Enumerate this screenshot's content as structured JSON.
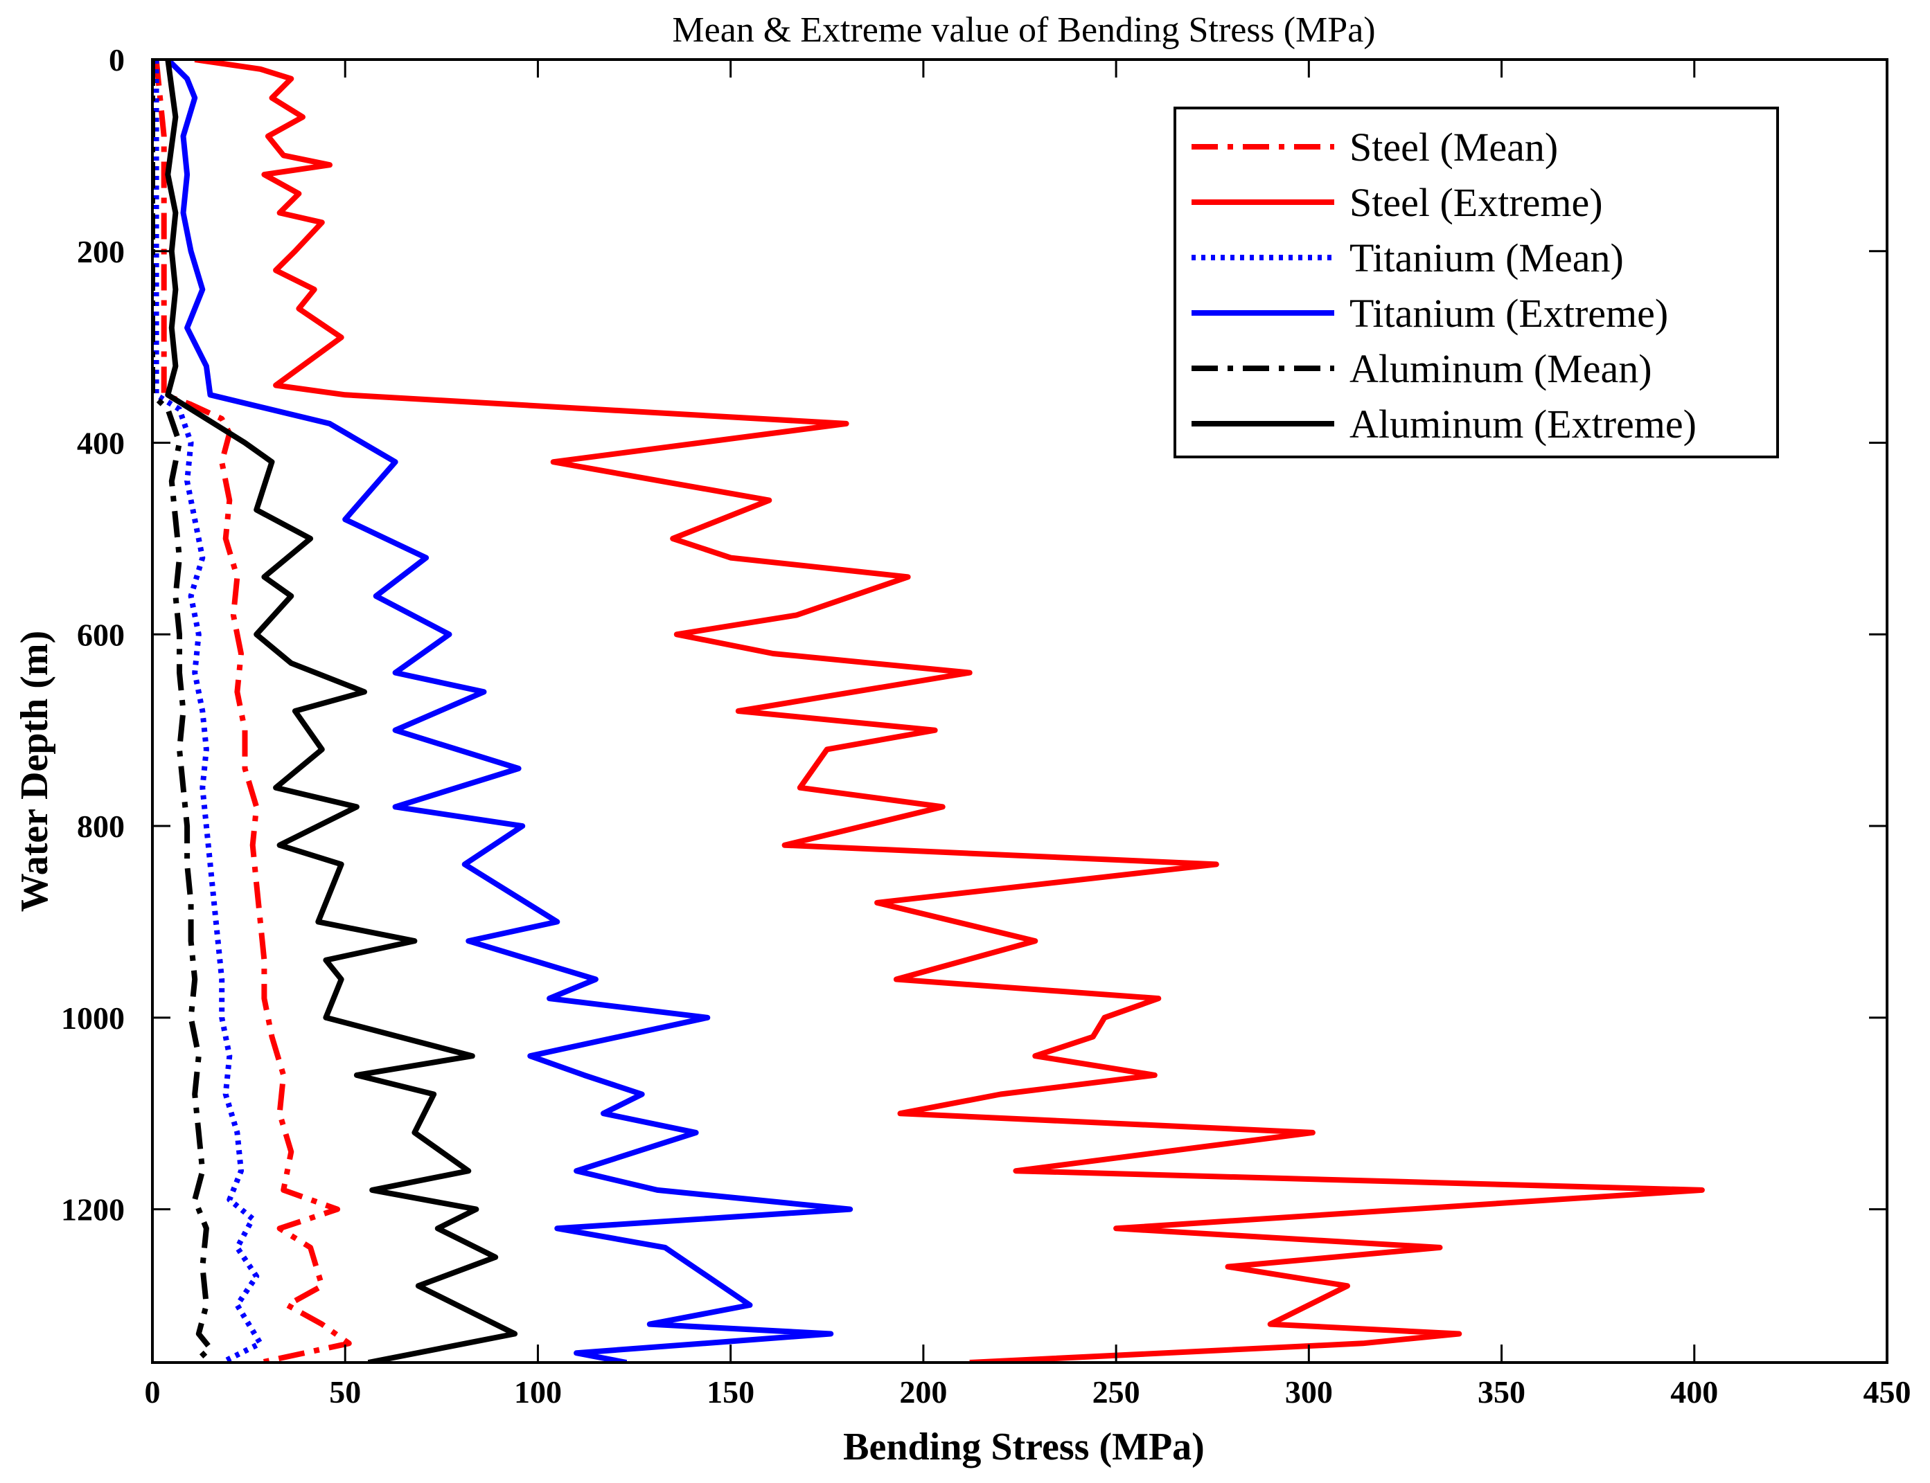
{
  "chart_data": {
    "type": "line",
    "title": "Mean & Extreme value of Bending Stress (MPa)",
    "xlabel": "Bending Stress (MPa)",
    "ylabel": "Water Depth (m)",
    "xlim": [
      0,
      450
    ],
    "ylim": [
      0,
      1360
    ],
    "y_reversed": true,
    "xticks": [
      "0",
      "50",
      "100",
      "150",
      "200",
      "250",
      "300",
      "350",
      "400",
      "450"
    ],
    "yticks": [
      "0",
      "200",
      "400",
      "600",
      "800",
      "1000",
      "1200"
    ],
    "grid": false,
    "legend_position": "top-right",
    "series": [
      {
        "name": "Steel (Mean)",
        "color": "#ff0000",
        "style": "dashdot",
        "points": [
          [
            1,
            0
          ],
          [
            2,
            40
          ],
          [
            3,
            80
          ],
          [
            3,
            120
          ],
          [
            3,
            160
          ],
          [
            3,
            200
          ],
          [
            3,
            240
          ],
          [
            3,
            280
          ],
          [
            3,
            320
          ],
          [
            3,
            350
          ],
          [
            10,
            360
          ],
          [
            18,
            375
          ],
          [
            20,
            390
          ],
          [
            18,
            420
          ],
          [
            20,
            460
          ],
          [
            19,
            500
          ],
          [
            22,
            540
          ],
          [
            21,
            580
          ],
          [
            23,
            620
          ],
          [
            22,
            660
          ],
          [
            24,
            700
          ],
          [
            24,
            740
          ],
          [
            27,
            780
          ],
          [
            26,
            820
          ],
          [
            27,
            860
          ],
          [
            28,
            900
          ],
          [
            29,
            940
          ],
          [
            29,
            980
          ],
          [
            31,
            1020
          ],
          [
            34,
            1060
          ],
          [
            33,
            1100
          ],
          [
            36,
            1140
          ],
          [
            34,
            1180
          ],
          [
            48,
            1200
          ],
          [
            33,
            1220
          ],
          [
            41,
            1240
          ],
          [
            44,
            1280
          ],
          [
            35,
            1300
          ],
          [
            44,
            1320
          ],
          [
            51,
            1340
          ],
          [
            28,
            1360
          ]
        ]
      },
      {
        "name": "Steel (Extreme)",
        "color": "#ff0000",
        "style": "solid",
        "points": [
          [
            11,
            0
          ],
          [
            28,
            10
          ],
          [
            36,
            20
          ],
          [
            31,
            40
          ],
          [
            39,
            60
          ],
          [
            30,
            80
          ],
          [
            34,
            100
          ],
          [
            46,
            110
          ],
          [
            29,
            120
          ],
          [
            38,
            140
          ],
          [
            33,
            160
          ],
          [
            44,
            170
          ],
          [
            37,
            200
          ],
          [
            32,
            220
          ],
          [
            42,
            240
          ],
          [
            38,
            260
          ],
          [
            49,
            290
          ],
          [
            32,
            340
          ],
          [
            50,
            350
          ],
          [
            180,
            380
          ],
          [
            104,
            420
          ],
          [
            160,
            460
          ],
          [
            135,
            500
          ],
          [
            150,
            520
          ],
          [
            196,
            540
          ],
          [
            167,
            580
          ],
          [
            136,
            600
          ],
          [
            161,
            620
          ],
          [
            212,
            640
          ],
          [
            152,
            680
          ],
          [
            203,
            700
          ],
          [
            175,
            720
          ],
          [
            168,
            760
          ],
          [
            205,
            780
          ],
          [
            164,
            820
          ],
          [
            276,
            840
          ],
          [
            188,
            880
          ],
          [
            229,
            920
          ],
          [
            193,
            960
          ],
          [
            261,
            980
          ],
          [
            247,
            1000
          ],
          [
            244,
            1020
          ],
          [
            229,
            1040
          ],
          [
            260,
            1060
          ],
          [
            220,
            1080
          ],
          [
            194,
            1100
          ],
          [
            301,
            1120
          ],
          [
            224,
            1160
          ],
          [
            402,
            1180
          ],
          [
            250,
            1220
          ],
          [
            334,
            1240
          ],
          [
            279,
            1260
          ],
          [
            310,
            1280
          ],
          [
            290,
            1320
          ],
          [
            339,
            1330
          ],
          [
            314,
            1340
          ],
          [
            212,
            1360
          ]
        ]
      },
      {
        "name": "Titanium (Mean)",
        "color": "#0000ff",
        "style": "dotted",
        "points": [
          [
            1,
            0
          ],
          [
            1,
            40
          ],
          [
            1,
            80
          ],
          [
            1,
            120
          ],
          [
            1,
            160
          ],
          [
            1,
            200
          ],
          [
            1,
            240
          ],
          [
            1,
            280
          ],
          [
            1,
            320
          ],
          [
            1,
            350
          ],
          [
            7,
            365
          ],
          [
            10,
            400
          ],
          [
            9,
            440
          ],
          [
            11,
            480
          ],
          [
            13,
            520
          ],
          [
            10,
            560
          ],
          [
            12,
            600
          ],
          [
            11,
            640
          ],
          [
            13,
            680
          ],
          [
            14,
            720
          ],
          [
            13,
            760
          ],
          [
            14,
            800
          ],
          [
            15,
            840
          ],
          [
            16,
            880
          ],
          [
            17,
            920
          ],
          [
            18,
            960
          ],
          [
            18,
            1000
          ],
          [
            20,
            1040
          ],
          [
            19,
            1080
          ],
          [
            22,
            1120
          ],
          [
            23,
            1160
          ],
          [
            20,
            1190
          ],
          [
            26,
            1210
          ],
          [
            22,
            1240
          ],
          [
            27,
            1270
          ],
          [
            22,
            1300
          ],
          [
            28,
            1340
          ],
          [
            18,
            1360
          ]
        ]
      },
      {
        "name": "Titanium (Extreme)",
        "color": "#0000ff",
        "style": "solid",
        "points": [
          [
            4,
            0
          ],
          [
            9,
            20
          ],
          [
            11,
            40
          ],
          [
            8,
            80
          ],
          [
            9,
            120
          ],
          [
            8,
            160
          ],
          [
            10,
            200
          ],
          [
            13,
            240
          ],
          [
            9,
            280
          ],
          [
            14,
            320
          ],
          [
            15,
            350
          ],
          [
            46,
            380
          ],
          [
            63,
            420
          ],
          [
            50,
            480
          ],
          [
            71,
            520
          ],
          [
            58,
            560
          ],
          [
            77,
            600
          ],
          [
            63,
            640
          ],
          [
            86,
            660
          ],
          [
            63,
            700
          ],
          [
            95,
            740
          ],
          [
            63,
            780
          ],
          [
            96,
            800
          ],
          [
            81,
            840
          ],
          [
            105,
            900
          ],
          [
            82,
            920
          ],
          [
            115,
            960
          ],
          [
            103,
            980
          ],
          [
            144,
            1000
          ],
          [
            98,
            1040
          ],
          [
            112,
            1060
          ],
          [
            127,
            1080
          ],
          [
            117,
            1100
          ],
          [
            141,
            1120
          ],
          [
            110,
            1160
          ],
          [
            131,
            1180
          ],
          [
            181,
            1200
          ],
          [
            105,
            1220
          ],
          [
            133,
            1240
          ],
          [
            155,
            1300
          ],
          [
            129,
            1320
          ],
          [
            176,
            1330
          ],
          [
            110,
            1350
          ],
          [
            123,
            1360
          ]
        ]
      },
      {
        "name": "Aluminum (Mean)",
        "color": "#000000",
        "style": "dashdot",
        "points": [
          [
            0,
            0
          ],
          [
            0,
            40
          ],
          [
            0,
            80
          ],
          [
            0,
            120
          ],
          [
            0,
            160
          ],
          [
            0,
            200
          ],
          [
            0,
            240
          ],
          [
            0,
            280
          ],
          [
            0,
            320
          ],
          [
            0,
            350
          ],
          [
            4,
            365
          ],
          [
            7,
            400
          ],
          [
            5,
            440
          ],
          [
            6,
            480
          ],
          [
            7,
            520
          ],
          [
            6,
            560
          ],
          [
            7,
            600
          ],
          [
            7,
            640
          ],
          [
            8,
            680
          ],
          [
            7,
            720
          ],
          [
            8,
            760
          ],
          [
            9,
            800
          ],
          [
            9,
            840
          ],
          [
            10,
            880
          ],
          [
            10,
            920
          ],
          [
            11,
            960
          ],
          [
            10,
            1000
          ],
          [
            12,
            1040
          ],
          [
            11,
            1080
          ],
          [
            12,
            1120
          ],
          [
            13,
            1160
          ],
          [
            11,
            1190
          ],
          [
            14,
            1220
          ],
          [
            13,
            1260
          ],
          [
            14,
            1300
          ],
          [
            12,
            1330
          ],
          [
            15,
            1345
          ],
          [
            11,
            1360
          ]
        ]
      },
      {
        "name": "Aluminum (Extreme)",
        "color": "#000000",
        "style": "solid",
        "points": [
          [
            4,
            0
          ],
          [
            5,
            30
          ],
          [
            6,
            60
          ],
          [
            5,
            90
          ],
          [
            4,
            120
          ],
          [
            6,
            160
          ],
          [
            5,
            200
          ],
          [
            6,
            240
          ],
          [
            5,
            280
          ],
          [
            6,
            320
          ],
          [
            4,
            350
          ],
          [
            24,
            400
          ],
          [
            31,
            420
          ],
          [
            27,
            470
          ],
          [
            41,
            500
          ],
          [
            29,
            540
          ],
          [
            36,
            560
          ],
          [
            27,
            600
          ],
          [
            36,
            630
          ],
          [
            55,
            660
          ],
          [
            37,
            680
          ],
          [
            44,
            720
          ],
          [
            32,
            760
          ],
          [
            53,
            780
          ],
          [
            33,
            820
          ],
          [
            49,
            840
          ],
          [
            43,
            900
          ],
          [
            68,
            920
          ],
          [
            45,
            940
          ],
          [
            49,
            960
          ],
          [
            45,
            1000
          ],
          [
            83,
            1040
          ],
          [
            53,
            1060
          ],
          [
            73,
            1080
          ],
          [
            68,
            1120
          ],
          [
            82,
            1160
          ],
          [
            57,
            1180
          ],
          [
            84,
            1200
          ],
          [
            74,
            1220
          ],
          [
            89,
            1250
          ],
          [
            69,
            1280
          ],
          [
            94,
            1330
          ],
          [
            56,
            1360
          ]
        ]
      }
    ]
  }
}
